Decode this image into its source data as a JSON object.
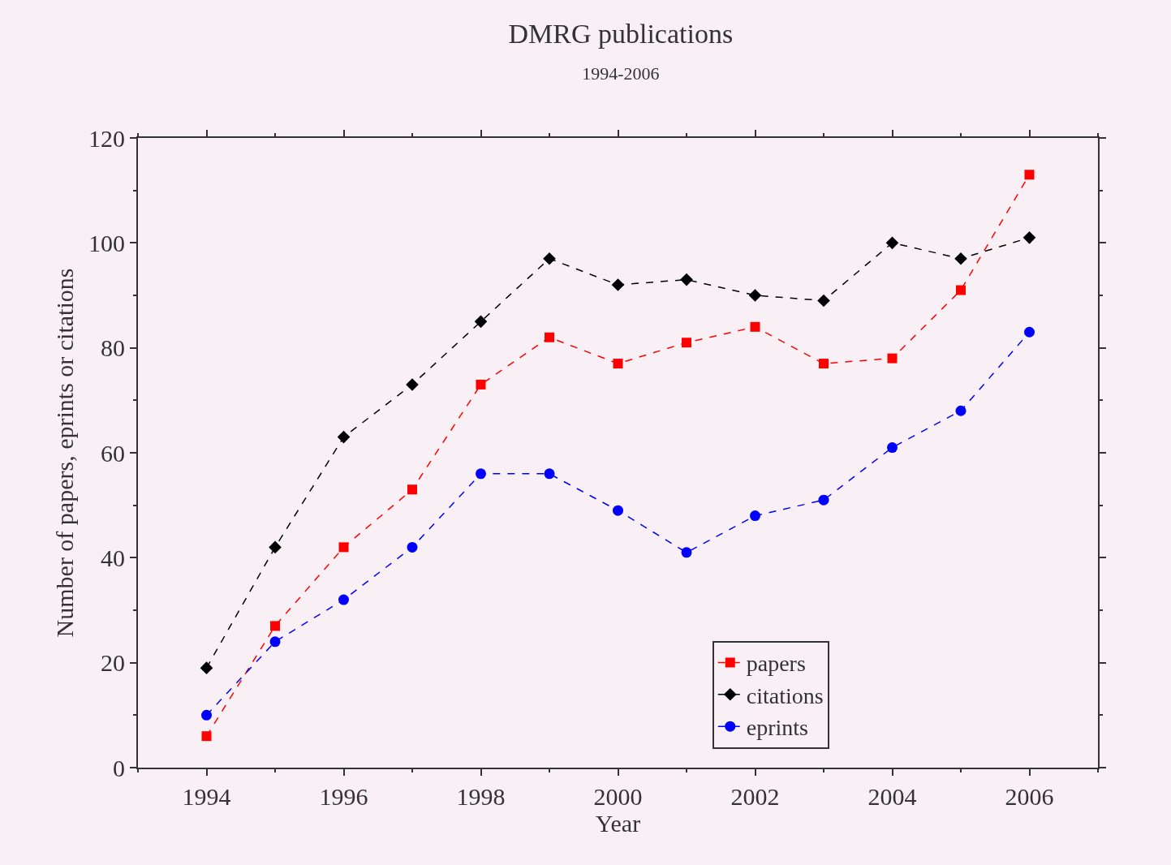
{
  "chart_data": {
    "type": "line",
    "title": "DMRG publications",
    "subtitle": "1994-2006",
    "xlabel": "Year",
    "ylabel": "Number of papers, eprints or citations",
    "x": [
      1994,
      1995,
      1996,
      1997,
      1998,
      1999,
      2000,
      2001,
      2002,
      2003,
      2004,
      2005,
      2006
    ],
    "series": [
      {
        "name": "papers",
        "color": "#ff0000",
        "marker": "square",
        "values": [
          6,
          27,
          42,
          53,
          73,
          82,
          77,
          81,
          84,
          77,
          78,
          91,
          113
        ]
      },
      {
        "name": "citations",
        "color": "#000000",
        "marker": "diamond",
        "values": [
          19,
          42,
          63,
          73,
          85,
          97,
          92,
          93,
          90,
          89,
          100,
          97,
          101
        ]
      },
      {
        "name": "eprints",
        "color": "#0000ff",
        "marker": "circle",
        "values": [
          10,
          24,
          32,
          42,
          56,
          56,
          49,
          41,
          48,
          51,
          61,
          68,
          83
        ]
      }
    ],
    "xlim": [
      1993,
      2007
    ],
    "xticks": [
      1994,
      1996,
      1998,
      2000,
      2002,
      2004,
      2006
    ],
    "ylim": [
      0,
      120
    ],
    "yticks": [
      0,
      20,
      40,
      60,
      80,
      100,
      120
    ],
    "grid": false,
    "legend": "bottom right",
    "line_style": "dashed"
  }
}
